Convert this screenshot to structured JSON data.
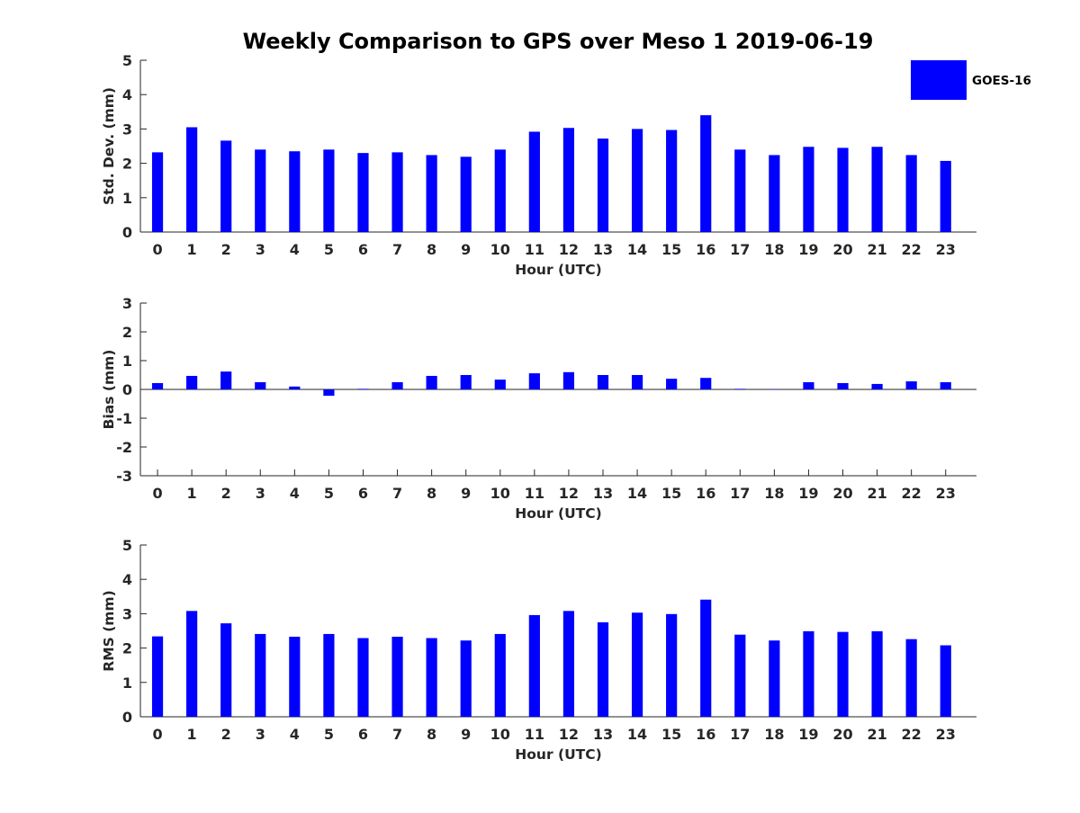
{
  "title": "Weekly Comparison to GPS over Meso 1 2019-06-19",
  "colors": {
    "bar": "#0000ff",
    "axis": "#262626",
    "background": "#ffffff"
  },
  "legend": {
    "label": "GOES-16",
    "placement": "top-right"
  },
  "chart_data": [
    {
      "type": "bar",
      "title": "Weekly Comparison to GPS over Meso 1 2019-06-19",
      "xlabel": "Hour (UTC)",
      "ylabel": "Std. Dev. (mm)",
      "ylim": [
        0,
        5
      ],
      "yticks": [
        0,
        1,
        2,
        3,
        4,
        5
      ],
      "categories": [
        "0",
        "1",
        "2",
        "3",
        "4",
        "5",
        "6",
        "7",
        "8",
        "9",
        "10",
        "11",
        "12",
        "13",
        "14",
        "15",
        "16",
        "17",
        "18",
        "19",
        "20",
        "21",
        "22",
        "23"
      ],
      "series": [
        {
          "name": "GOES-16",
          "values": [
            2.32,
            3.05,
            2.66,
            2.4,
            2.35,
            2.4,
            2.3,
            2.32,
            2.24,
            2.19,
            2.4,
            2.92,
            3.03,
            2.72,
            3.0,
            2.97,
            3.4,
            2.4,
            2.24,
            2.48,
            2.45,
            2.48,
            2.24,
            2.07
          ]
        }
      ]
    },
    {
      "type": "bar",
      "title": "",
      "xlabel": "Hour (UTC)",
      "ylabel": "Bias (mm)",
      "ylim": [
        -3,
        3
      ],
      "yticks": [
        -3,
        -2,
        -1,
        0,
        1,
        2,
        3
      ],
      "categories": [
        "0",
        "1",
        "2",
        "3",
        "4",
        "5",
        "6",
        "7",
        "8",
        "9",
        "10",
        "11",
        "12",
        "13",
        "14",
        "15",
        "16",
        "17",
        "18",
        "19",
        "20",
        "21",
        "22",
        "23"
      ],
      "series": [
        {
          "name": "GOES-16",
          "values": [
            0.22,
            0.47,
            0.62,
            0.25,
            0.1,
            -0.22,
            0.02,
            0.25,
            0.47,
            0.5,
            0.34,
            0.56,
            0.6,
            0.5,
            0.5,
            0.37,
            0.4,
            0.02,
            0.01,
            0.25,
            0.22,
            0.19,
            0.28,
            0.25
          ]
        }
      ]
    },
    {
      "type": "bar",
      "title": "",
      "xlabel": "Hour (UTC)",
      "ylabel": "RMS (mm)",
      "ylim": [
        0,
        5
      ],
      "yticks": [
        0,
        1,
        2,
        3,
        4,
        5
      ],
      "categories": [
        "0",
        "1",
        "2",
        "3",
        "4",
        "5",
        "6",
        "7",
        "8",
        "9",
        "10",
        "11",
        "12",
        "13",
        "14",
        "15",
        "16",
        "17",
        "18",
        "19",
        "20",
        "21",
        "22",
        "23"
      ],
      "series": [
        {
          "name": "GOES-16",
          "values": [
            2.34,
            3.08,
            2.72,
            2.41,
            2.33,
            2.41,
            2.29,
            2.33,
            2.29,
            2.22,
            2.41,
            2.96,
            3.08,
            2.75,
            3.03,
            2.99,
            3.41,
            2.39,
            2.22,
            2.49,
            2.47,
            2.49,
            2.26,
            2.08
          ]
        }
      ]
    }
  ]
}
